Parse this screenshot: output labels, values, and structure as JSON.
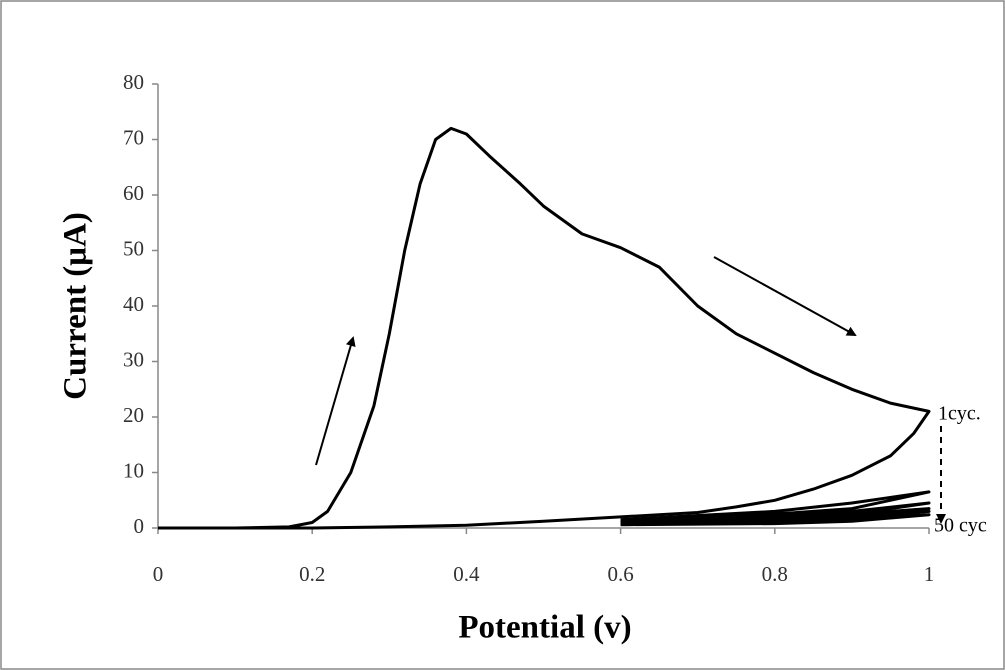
{
  "chart_data": {
    "type": "line",
    "xlabel": "Potential (v)",
    "ylabel": "Current (μA)",
    "annotations": [
      "1cyc.",
      "50 cyc"
    ],
    "xlim": [
      0,
      1
    ],
    "xticks": [
      0,
      0.2,
      0.4,
      0.6,
      0.8,
      1
    ],
    "ylim": [
      0,
      80
    ],
    "yticks": [
      0,
      10,
      20,
      30,
      40,
      50,
      60,
      70,
      80
    ],
    "grid": false,
    "series": [
      {
        "color": "#000000",
        "x": [
          0,
          0.1,
          0.17,
          0.2,
          0.22,
          0.25,
          0.28,
          0.3,
          0.32,
          0.34,
          0.36,
          0.38,
          0.4,
          0.43,
          0.47,
          0.5,
          0.55,
          0.6,
          0.65,
          0.7,
          0.75,
          0.8,
          0.85,
          0.9,
          0.95,
          1,
          0.98,
          0.95,
          0.9,
          0.85,
          0.8,
          0.75,
          0.7,
          0.6,
          0.5,
          0.4,
          0.3,
          0.2,
          0
        ],
        "values": [
          0,
          0,
          0.2,
          1,
          3,
          10,
          22,
          35,
          50,
          62,
          70,
          72,
          71,
          67,
          62,
          58,
          53,
          50.5,
          47,
          40,
          35,
          31.5,
          28,
          25,
          22.5,
          21,
          17,
          13,
          9.5,
          7,
          5,
          3.8,
          2.8,
          2,
          1.2,
          0.5,
          0.2,
          0,
          0
        ]
      },
      {
        "color": "#000000",
        "x": [
          0.6,
          0.8,
          0.9,
          1,
          0.95,
          0.9,
          0.8,
          0.6
        ],
        "values": [
          1.5,
          3,
          4.5,
          6.5,
          5,
          3.5,
          2.5,
          1.5
        ]
      },
      {
        "color": "#000000",
        "x": [
          0.6,
          0.8,
          0.9,
          1,
          0.95,
          0.9,
          0.8,
          0.6
        ],
        "values": [
          1.2,
          2.2,
          3,
          4.5,
          3.5,
          2.6,
          1.8,
          1.2
        ]
      },
      {
        "color": "#000000",
        "x": [
          0.6,
          0.8,
          0.9,
          1,
          0.95,
          0.9,
          0.8,
          0.6
        ],
        "values": [
          1,
          1.8,
          2.5,
          3.5,
          2.8,
          2,
          1.4,
          1
        ]
      },
      {
        "color": "#000000",
        "x": [
          0.6,
          0.8,
          0.9,
          1,
          0.95,
          0.9,
          0.8,
          0.6
        ],
        "values": [
          0.8,
          1.4,
          2,
          3,
          2.2,
          1.6,
          1.1,
          0.8
        ]
      },
      {
        "color": "#000000",
        "x": [
          0.6,
          0.8,
          0.9,
          1,
          0.95,
          0.9,
          0.8,
          0.6
        ],
        "values": [
          0.6,
          1,
          1.5,
          2.4,
          1.8,
          1.2,
          0.8,
          0.6
        ]
      }
    ]
  }
}
